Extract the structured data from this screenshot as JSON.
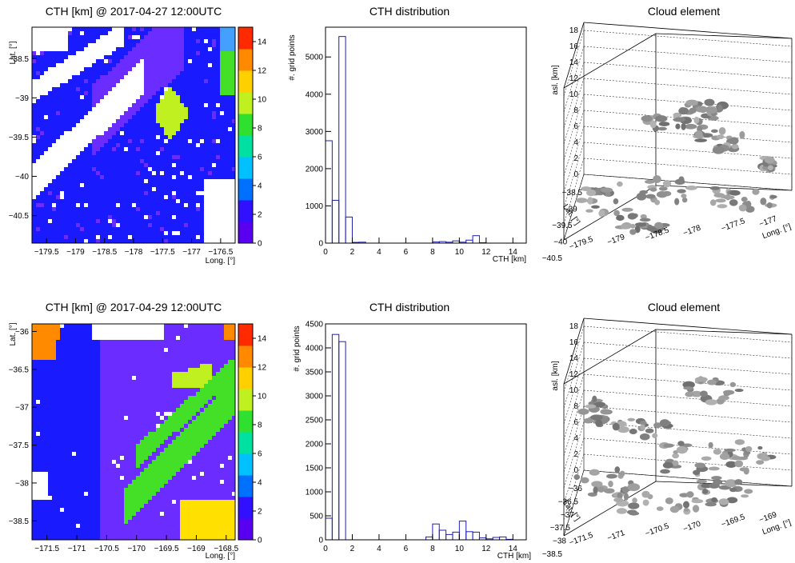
{
  "colors": {
    "frame": "#000000",
    "histogram": "#1f1fb4",
    "colorbar": [
      "#5a00f0",
      "#3010ff",
      "#0070ff",
      "#00c0ff",
      "#00e0a0",
      "#30e030",
      "#c0f020",
      "#ffd000",
      "#ff8a00",
      "#ff2a00"
    ],
    "map_blue": "#1a1aff",
    "map_purple": "#6a2cff",
    "map_yellowgreen": "#c0f020",
    "map_green": "#44e028",
    "map_orange": "#ff8a00",
    "map_yellow": "#ffe000",
    "surface_gray": "#8c8c8c"
  },
  "rows": [
    {
      "map": {
        "title": "CTH [km] @ 2017-04-27 12:00UTC",
        "ylabel": "Lat. [°]",
        "xlabel": "Long. [°]",
        "xticks": [
          "−179.5",
          "−179",
          "−178.5",
          "−178",
          "−177.5",
          "−177",
          "−176.5"
        ],
        "yticks": [
          "−38.5",
          "−39",
          "−39.5",
          "−40",
          "−40.5"
        ],
        "colorbar_ticks": [
          "0",
          "2",
          "4",
          "6",
          "8",
          "10",
          "12",
          "14"
        ]
      },
      "hist": {
        "title": "CTH distribution",
        "ylabel": "#. grid points",
        "xlabel": "CTH [km]",
        "xticks": [
          "0",
          "2",
          "4",
          "6",
          "8",
          "10",
          "12",
          "14"
        ],
        "yticks": [
          "0",
          "1000",
          "2000",
          "3000",
          "4000",
          "5000"
        ]
      },
      "cloud": {
        "title": "Cloud element",
        "zlabel": "asl. [km]",
        "latlabel": "Lat. [°]",
        "lonlabel": "Long. [°]",
        "zticks": [
          "0",
          "2",
          "4",
          "6",
          "8",
          "10",
          "12",
          "14",
          "16",
          "18"
        ],
        "latticks": [
          "−38.5",
          "−39",
          "−39.5",
          "−40",
          "−40.5"
        ],
        "lonticks": [
          "−179.5",
          "−179",
          "−178.5",
          "−178",
          "−177.5",
          "−177",
          "−176.5"
        ]
      }
    },
    {
      "map": {
        "title": "CTH [km] @ 2017-04-29 12:00UTC",
        "ylabel": "Lat. [°]",
        "xlabel": "Long. [°]",
        "xticks": [
          "−171.5",
          "−171",
          "−170.5",
          "−170",
          "−169.5",
          "−169",
          "−168.5"
        ],
        "yticks": [
          "−36",
          "−36.5",
          "−37",
          "−37.5",
          "−38",
          "−38.5"
        ],
        "colorbar_ticks": [
          "0",
          "2",
          "4",
          "6",
          "8",
          "10",
          "12",
          "14"
        ]
      },
      "hist": {
        "title": "CTH distribution",
        "ylabel": "#. grid points",
        "xlabel": "CTH [km]",
        "xticks": [
          "0",
          "2",
          "4",
          "6",
          "8",
          "10",
          "12",
          "14"
        ],
        "yticks": [
          "0",
          "500",
          "1000",
          "1500",
          "2000",
          "2500",
          "3000",
          "3500",
          "4000",
          "4500"
        ]
      },
      "cloud": {
        "title": "Cloud element",
        "zlabel": "asl. [km]",
        "latlabel": "Lat. [°]",
        "lonlabel": "Long. [°]",
        "zticks": [
          "0",
          "2",
          "4",
          "6",
          "8",
          "10",
          "12",
          "14",
          "16",
          "18"
        ],
        "latticks": [
          "−36",
          "−36.5",
          "−37",
          "−37.5",
          "−38",
          "−38.5"
        ],
        "lonticks": [
          "−171.5",
          "−171",
          "−170.5",
          "−170",
          "−169.5",
          "−169",
          "−168.5"
        ]
      }
    }
  ],
  "chart_data": [
    {
      "type": "heatmap",
      "title": "CTH [km] @ 2017-04-27 12:00UTC",
      "xlabel": "Long. [°]",
      "ylabel": "Lat. [°]",
      "xlim": [
        -179.75,
        -176.25
      ],
      "ylim": [
        -40.85,
        -38.1
      ],
      "colorbar_range": [
        0,
        15
      ],
      "grid": false
    },
    {
      "type": "bar",
      "title": "CTH distribution",
      "xlabel": "CTH [km]",
      "ylabel": "#. grid points",
      "xlim": [
        0,
        15
      ],
      "ylim": [
        0,
        5800
      ],
      "bin_width": 0.5,
      "x": [
        0,
        0.5,
        1,
        1.5,
        2,
        2.5,
        3,
        3.5,
        4,
        4.5,
        5,
        5.5,
        6,
        6.5,
        7,
        7.5,
        8,
        8.5,
        9,
        9.5,
        10,
        10.5,
        11,
        11.5,
        12,
        12.5,
        13,
        13.5,
        14,
        14.5
      ],
      "values": [
        2750,
        1150,
        5550,
        700,
        20,
        25,
        0,
        0,
        0,
        0,
        0,
        0,
        0,
        0,
        0,
        0,
        30,
        40,
        25,
        60,
        25,
        80,
        200,
        10,
        0,
        0,
        0,
        0,
        0,
        0
      ],
      "grid": false
    },
    {
      "type": "scatter",
      "title": "Cloud element",
      "zlabel": "asl. [km]",
      "zlim": [
        0,
        19
      ],
      "grid": true
    },
    {
      "type": "heatmap",
      "title": "CTH [km] @ 2017-04-29 12:00UTC",
      "xlabel": "Long. [°]",
      "ylabel": "Lat. [°]",
      "xlim": [
        -171.75,
        -168.35
      ],
      "ylim": [
        -38.75,
        -35.9
      ],
      "colorbar_range": [
        0,
        15
      ],
      "grid": false
    },
    {
      "type": "bar",
      "title": "CTH distribution",
      "xlabel": "CTH [km]",
      "ylabel": "#. grid points",
      "xlim": [
        0,
        15
      ],
      "ylim": [
        0,
        4500
      ],
      "bin_width": 0.5,
      "x": [
        0,
        0.5,
        1,
        1.5,
        2,
        2.5,
        3,
        3.5,
        4,
        4.5,
        5,
        5.5,
        6,
        6.5,
        7,
        7.5,
        8,
        8.5,
        9,
        9.5,
        10,
        10.5,
        11,
        11.5,
        12,
        12.5,
        13,
        13.5,
        14,
        14.5
      ],
      "values": [
        450,
        4280,
        4130,
        0,
        0,
        0,
        0,
        0,
        0,
        0,
        0,
        0,
        0,
        0,
        0,
        60,
        330,
        200,
        110,
        160,
        390,
        170,
        160,
        40,
        20,
        50,
        60,
        10,
        0,
        0
      ],
      "grid": false
    },
    {
      "type": "scatter",
      "title": "Cloud element",
      "zlabel": "asl. [km]",
      "zlim": [
        0,
        19
      ],
      "grid": true
    }
  ]
}
